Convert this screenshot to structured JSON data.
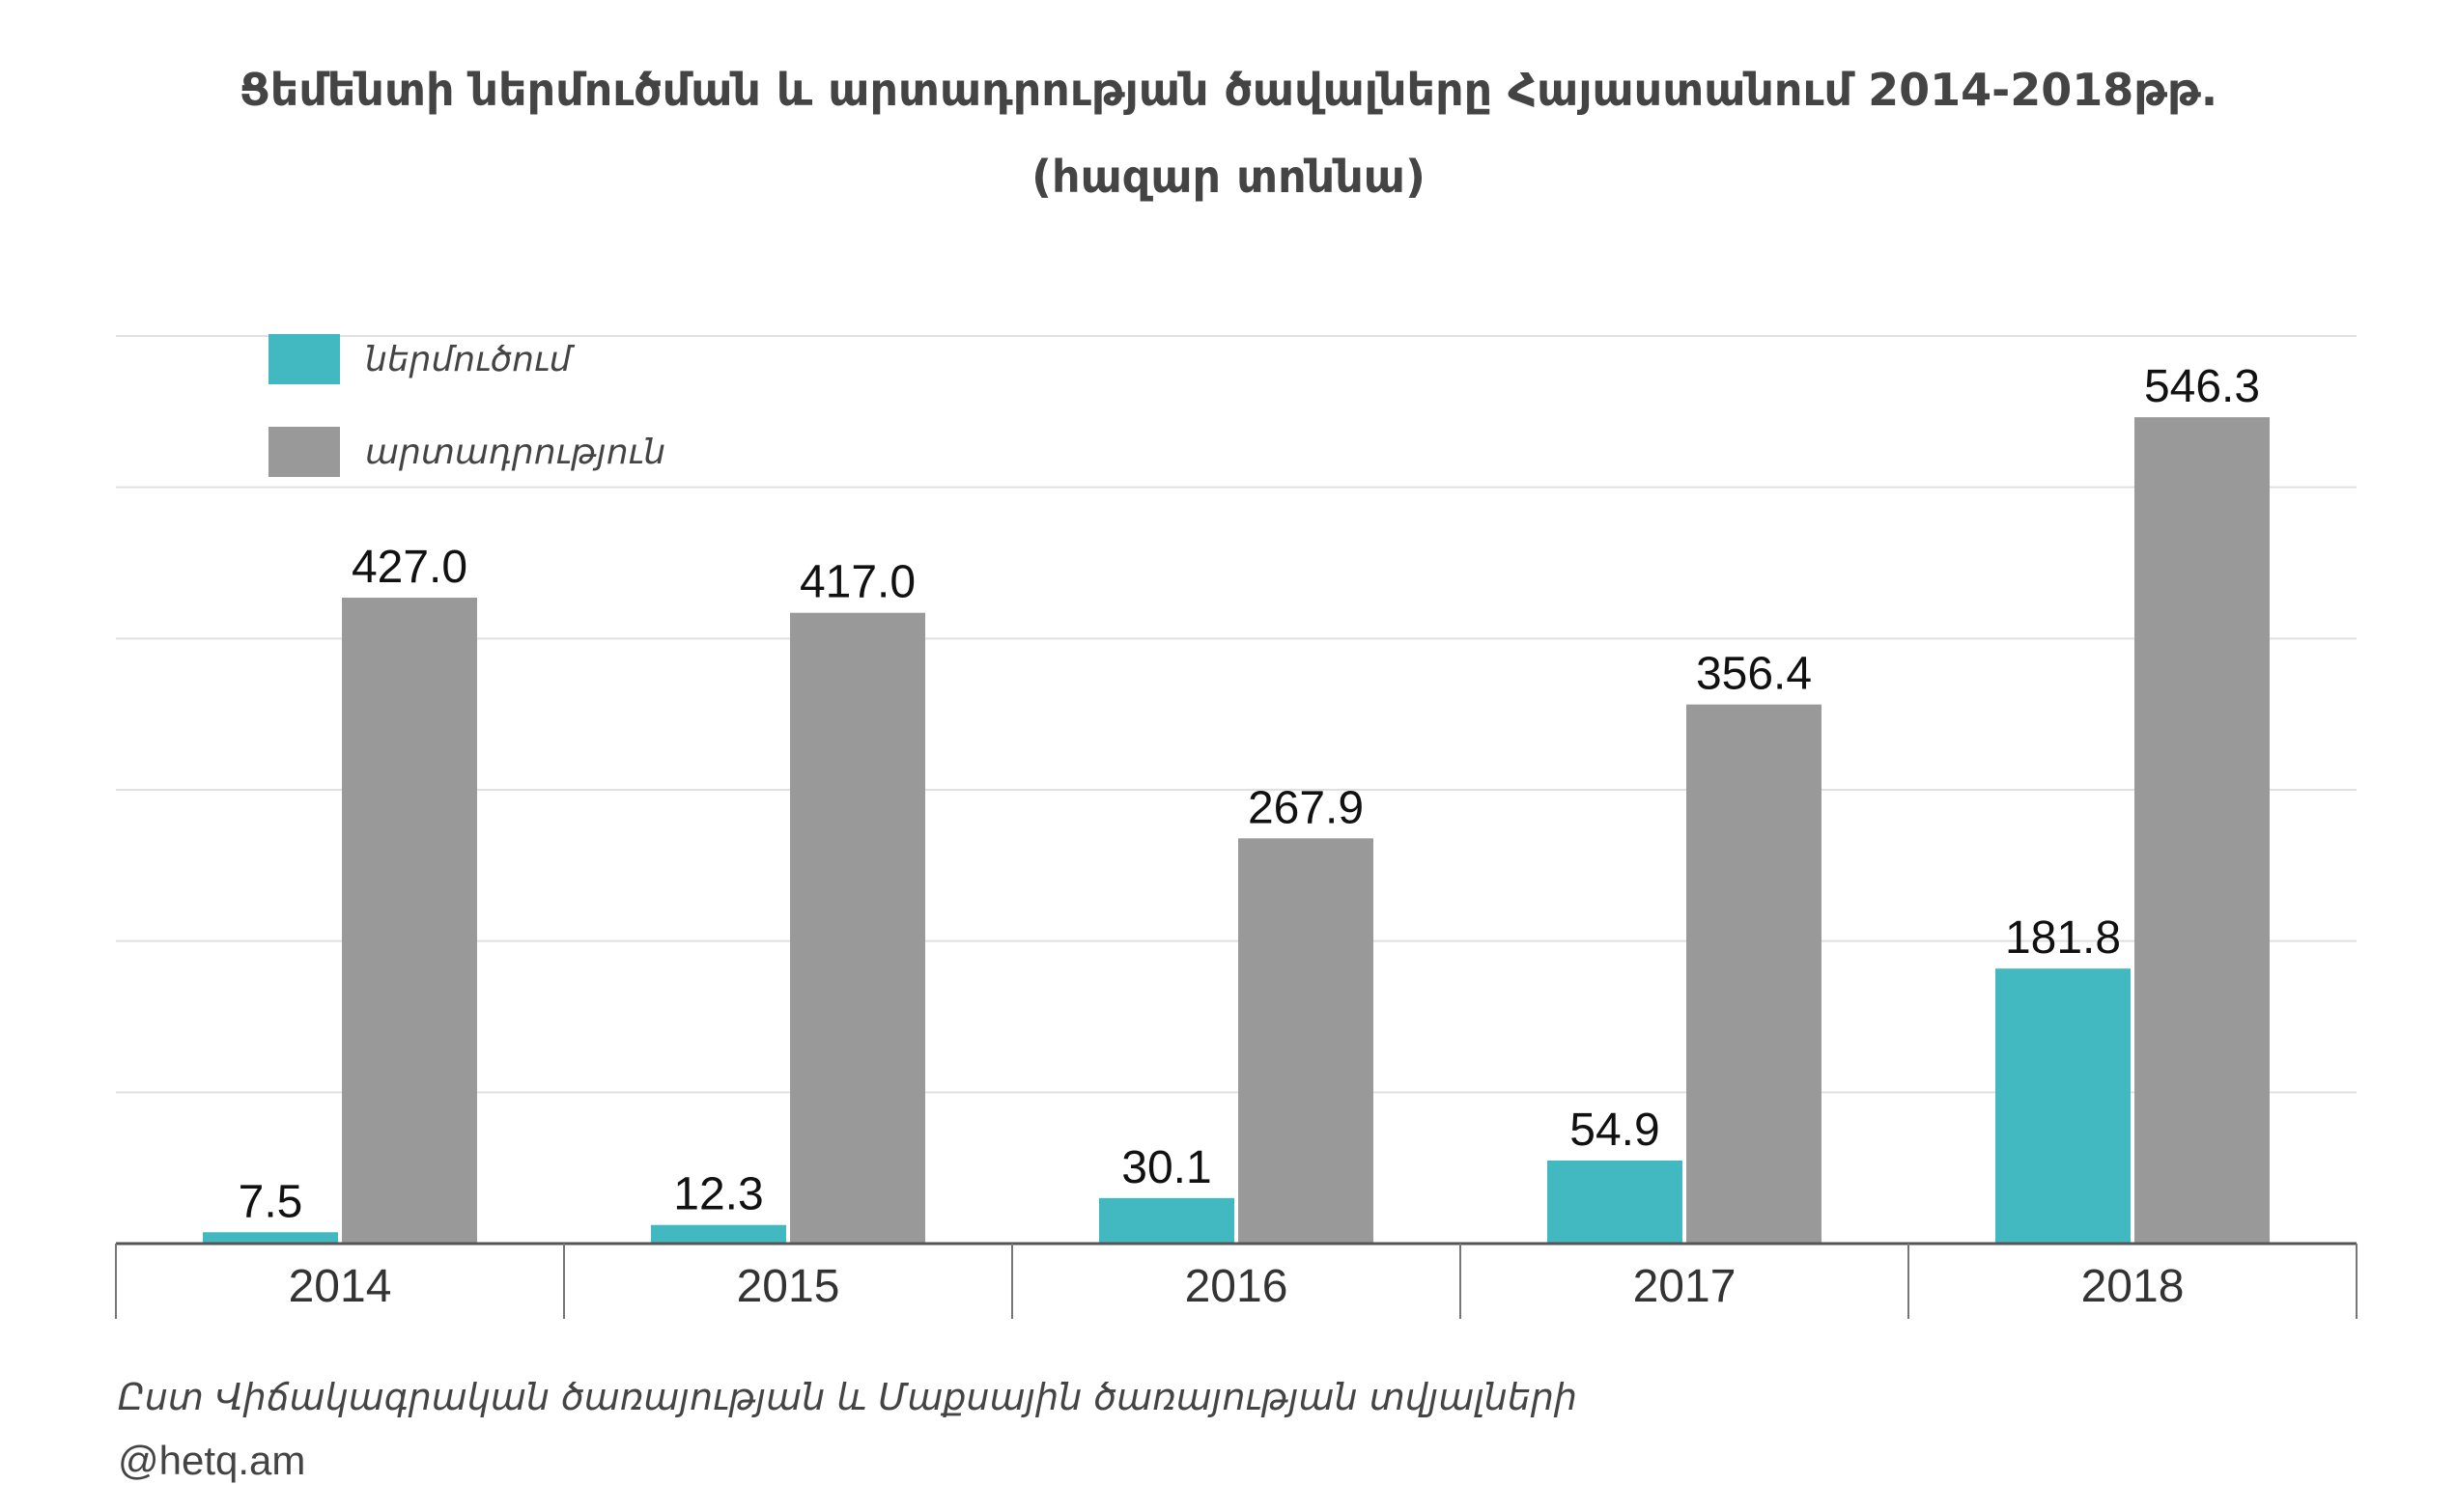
{
  "title": {
    "line1": "Ցեմենտի ներմուծման և արտադրության ծավալները Հայաստանում 2014-2018թթ.",
    "line2": "(հազար տոննա)"
  },
  "chart_data": {
    "type": "bar",
    "categories": [
      "2014",
      "2015",
      "2016",
      "2017",
      "2018"
    ],
    "series": [
      {
        "name": "ներմուծում",
        "color": "#42b8c0",
        "values": [
          7.5,
          12.3,
          30.1,
          54.9,
          181.8
        ],
        "labels": [
          "7.5",
          "12.3",
          "30.1",
          "54.9",
          "181.8"
        ]
      },
      {
        "name": "արտադրություն",
        "color": "#999999",
        "values": [
          427.0,
          417.0,
          267.9,
          356.4,
          546.3
        ],
        "labels": [
          "427.0",
          "417.0",
          "267.9",
          "356.4",
          "546.3"
        ]
      }
    ],
    "ylim": [
      0,
      600
    ],
    "grid": true,
    "legend": "top-left"
  },
  "footer": {
    "source": "Ըստ Վիճակագրական ծառայության և Մաքսային ծառայության  տվյալների",
    "brand": "@hetq.am"
  }
}
